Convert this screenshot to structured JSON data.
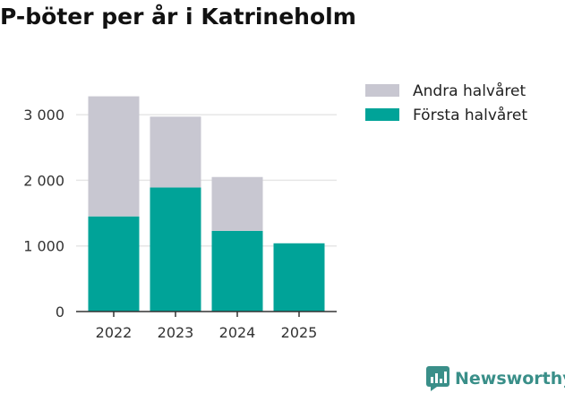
{
  "title": "P-böter per år i Katrineholm",
  "chart_data": {
    "type": "bar",
    "stacked": true,
    "categories": [
      "2022",
      "2023",
      "2024",
      "2025"
    ],
    "series": [
      {
        "name": "Första halvåret",
        "color": "#00a398",
        "values": [
          1450,
          1890,
          1230,
          1040
        ]
      },
      {
        "name": "Andra halvåret",
        "color": "#c8c7d1",
        "values": [
          1830,
          1080,
          820,
          0
        ]
      }
    ],
    "y_ticks": [
      0,
      1000,
      2000,
      3000
    ],
    "y_tick_labels": [
      "0",
      "1 000",
      "2 000",
      "3 000"
    ],
    "ylim": [
      0,
      3400
    ],
    "legend": [
      "Andra halvåret",
      "Första halvåret"
    ],
    "legend_position": "top-right",
    "grid": true
  },
  "brand": {
    "name": "Newsworthy",
    "color": "#3a8f89"
  }
}
